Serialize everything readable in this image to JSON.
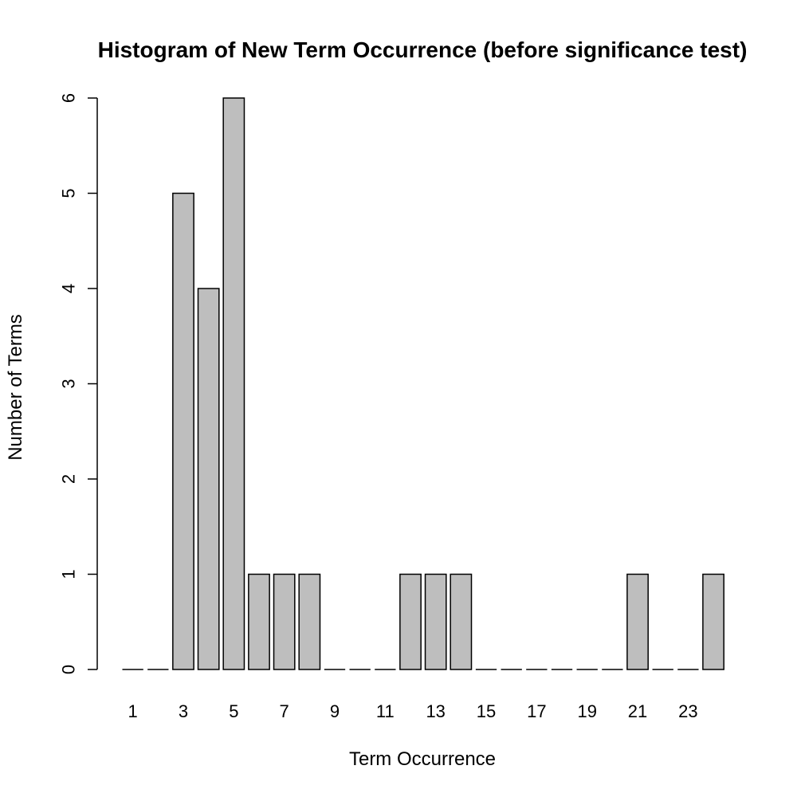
{
  "chart_data": {
    "type": "bar",
    "title": "Histogram of New Term Occurrence (before significance test)",
    "xlabel": "Term Occurrence",
    "ylabel": "Number of Terms",
    "categories": [
      "1",
      "2",
      "3",
      "4",
      "5",
      "6",
      "7",
      "8",
      "9",
      "10",
      "11",
      "12",
      "13",
      "14",
      "15",
      "16",
      "17",
      "18",
      "19",
      "20",
      "21",
      "22",
      "23",
      "24"
    ],
    "values": [
      0,
      0,
      5,
      4,
      6,
      1,
      1,
      1,
      0,
      0,
      0,
      1,
      1,
      1,
      0,
      0,
      0,
      0,
      0,
      0,
      1,
      0,
      0,
      1
    ],
    "x_tick_labels": [
      "1",
      "3",
      "5",
      "7",
      "9",
      "11",
      "13",
      "15",
      "17",
      "19",
      "21",
      "23"
    ],
    "y_ticks": [
      0,
      1,
      2,
      3,
      4,
      5,
      6
    ],
    "ylim": [
      0,
      6
    ],
    "bar_color": "#bebebe",
    "grid": false,
    "legend": "none"
  }
}
